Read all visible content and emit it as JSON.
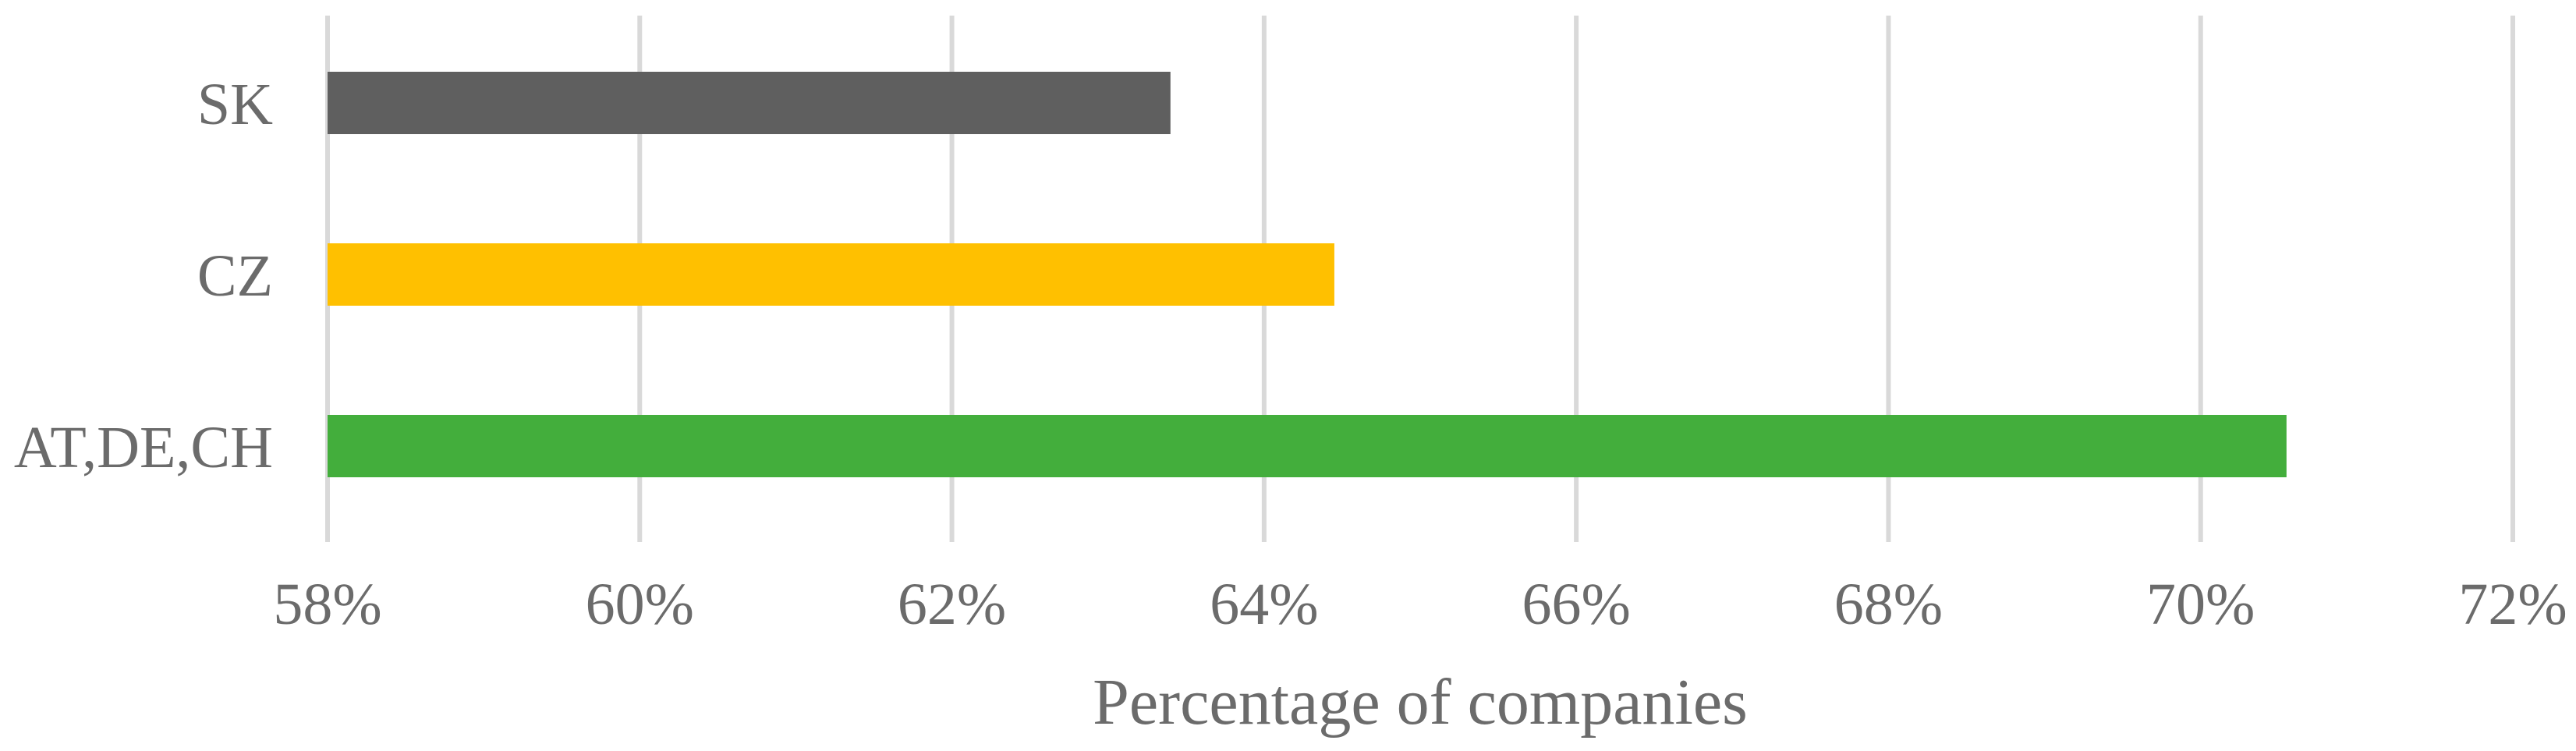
{
  "chart_data": {
    "type": "bar",
    "orientation": "horizontal",
    "categories": [
      "SK",
      "CZ",
      "AT,DE,CH"
    ],
    "values": [
      63.4,
      64.45,
      70.55
    ],
    "colors": [
      "#5f5f5f",
      "#ffc000",
      "#43ae3c"
    ],
    "xlabel": "Percentage of companies",
    "ylabel": "",
    "xlim": [
      58,
      72
    ],
    "xticks": [
      58,
      60,
      62,
      64,
      66,
      68,
      70,
      72
    ],
    "tick_suffix": "%",
    "grid": true,
    "legend": "none"
  }
}
